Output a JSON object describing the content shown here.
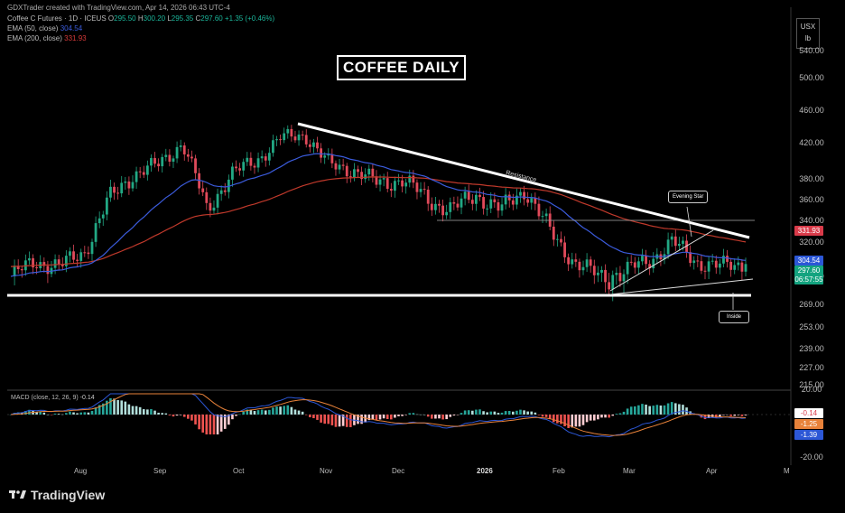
{
  "header": {
    "credit": "GDXTrader created with TradingView.com, Apr 14, 2026 06:43 UTC-4",
    "symbol": "Coffee C Futures · 1D · ICEUS",
    "o_label": "O",
    "o_value": "295.50",
    "h_label": "H",
    "h_value": "300.20",
    "l_label": "L",
    "l_value": "295.35",
    "c_label": "C",
    "c_value": "297.60",
    "change": "+1.35 (+0.46%)",
    "ema50_label": "EMA (50, close)",
    "ema50_value": "304.54",
    "ema200_label": "EMA (200, close)",
    "ema200_value": "331.93"
  },
  "title": "COFFEE DAILY",
  "unit": {
    "currency": "USX",
    "measure": "lb"
  },
  "price_axis": [
    "540.00",
    "500.00",
    "460.00",
    "420.00",
    "380.00",
    "360.00",
    "340.00",
    "320.00",
    "285.00",
    "269.00",
    "253.00",
    "239.00",
    "227.00",
    "215.00"
  ],
  "tags": {
    "ema200": "331.93",
    "ema50": "304.54",
    "last": "297.60",
    "countdown": "06:57:55"
  },
  "macd": {
    "legend": "MACD (close, 12, 26, 9)",
    "legend_value": "-0.14",
    "axis_top": "20.00",
    "axis_bottom": "-20.00",
    "tag_hist": "-0.14",
    "tag_signal": "-1.25",
    "tag_macd": "-1.39"
  },
  "date_axis": [
    "Aug",
    "Sep",
    "Oct",
    "Nov",
    "Dec",
    "2026",
    "Feb",
    "Mar",
    "Apr",
    "M"
  ],
  "annotations": {
    "resistance": "Resistance",
    "evening_star": "Evening Star",
    "inside": "Inside"
  },
  "brand": "TradingView",
  "colors": {
    "up": "#22a884",
    "down": "#e04a5a",
    "ema50": "#3b5bdb",
    "ema200": "#c0392b",
    "tag_green": "#13a37f",
    "tag_red": "#d93b4a",
    "tag_blue": "#2c57d6",
    "tag_orange": "#e8823a"
  },
  "chart_data": {
    "type": "candlestick",
    "title": "COFFEE DAILY",
    "ylabel": "USX / lb",
    "ylim": [
      215,
      540
    ],
    "x_range": [
      "Jul",
      "May"
    ],
    "close_path": [
      {
        "date": "Jul",
        "close": 285
      },
      {
        "date": "Aug",
        "close": 300
      },
      {
        "date": "Aug",
        "close": 295
      },
      {
        "date": "Aug",
        "close": 310
      },
      {
        "date": "Sep",
        "close": 360
      },
      {
        "date": "Sep",
        "close": 385
      },
      {
        "date": "Sep",
        "close": 395
      },
      {
        "date": "Sep",
        "close": 420
      },
      {
        "date": "Oct",
        "close": 350
      },
      {
        "date": "Oct",
        "close": 385
      },
      {
        "date": "Oct",
        "close": 400
      },
      {
        "date": "Oct",
        "close": 425
      },
      {
        "date": "Nov",
        "close": 430
      },
      {
        "date": "Nov",
        "close": 395
      },
      {
        "date": "Nov",
        "close": 390
      },
      {
        "date": "Dec",
        "close": 375
      },
      {
        "date": "Dec",
        "close": 380
      },
      {
        "date": "Dec",
        "close": 360
      },
      {
        "date": "Jan",
        "close": 350
      },
      {
        "date": "Jan",
        "close": 365
      },
      {
        "date": "Jan",
        "close": 350
      },
      {
        "date": "Jan",
        "close": 370
      },
      {
        "date": "Feb",
        "close": 330
      },
      {
        "date": "Feb",
        "close": 300
      },
      {
        "date": "Feb",
        "close": 285
      },
      {
        "date": "Mar",
        "close": 290
      },
      {
        "date": "Mar",
        "close": 300
      },
      {
        "date": "Mar",
        "close": 320
      },
      {
        "date": "Apr",
        "close": 300
      },
      {
        "date": "Apr",
        "close": 295
      },
      {
        "date": "Apr",
        "close": 297.6
      }
    ],
    "series": [
      {
        "name": "EMA (50, close)",
        "last": 304.54
      },
      {
        "name": "EMA (200, close)",
        "last": 331.93
      }
    ],
    "last_close": 297.6
  }
}
